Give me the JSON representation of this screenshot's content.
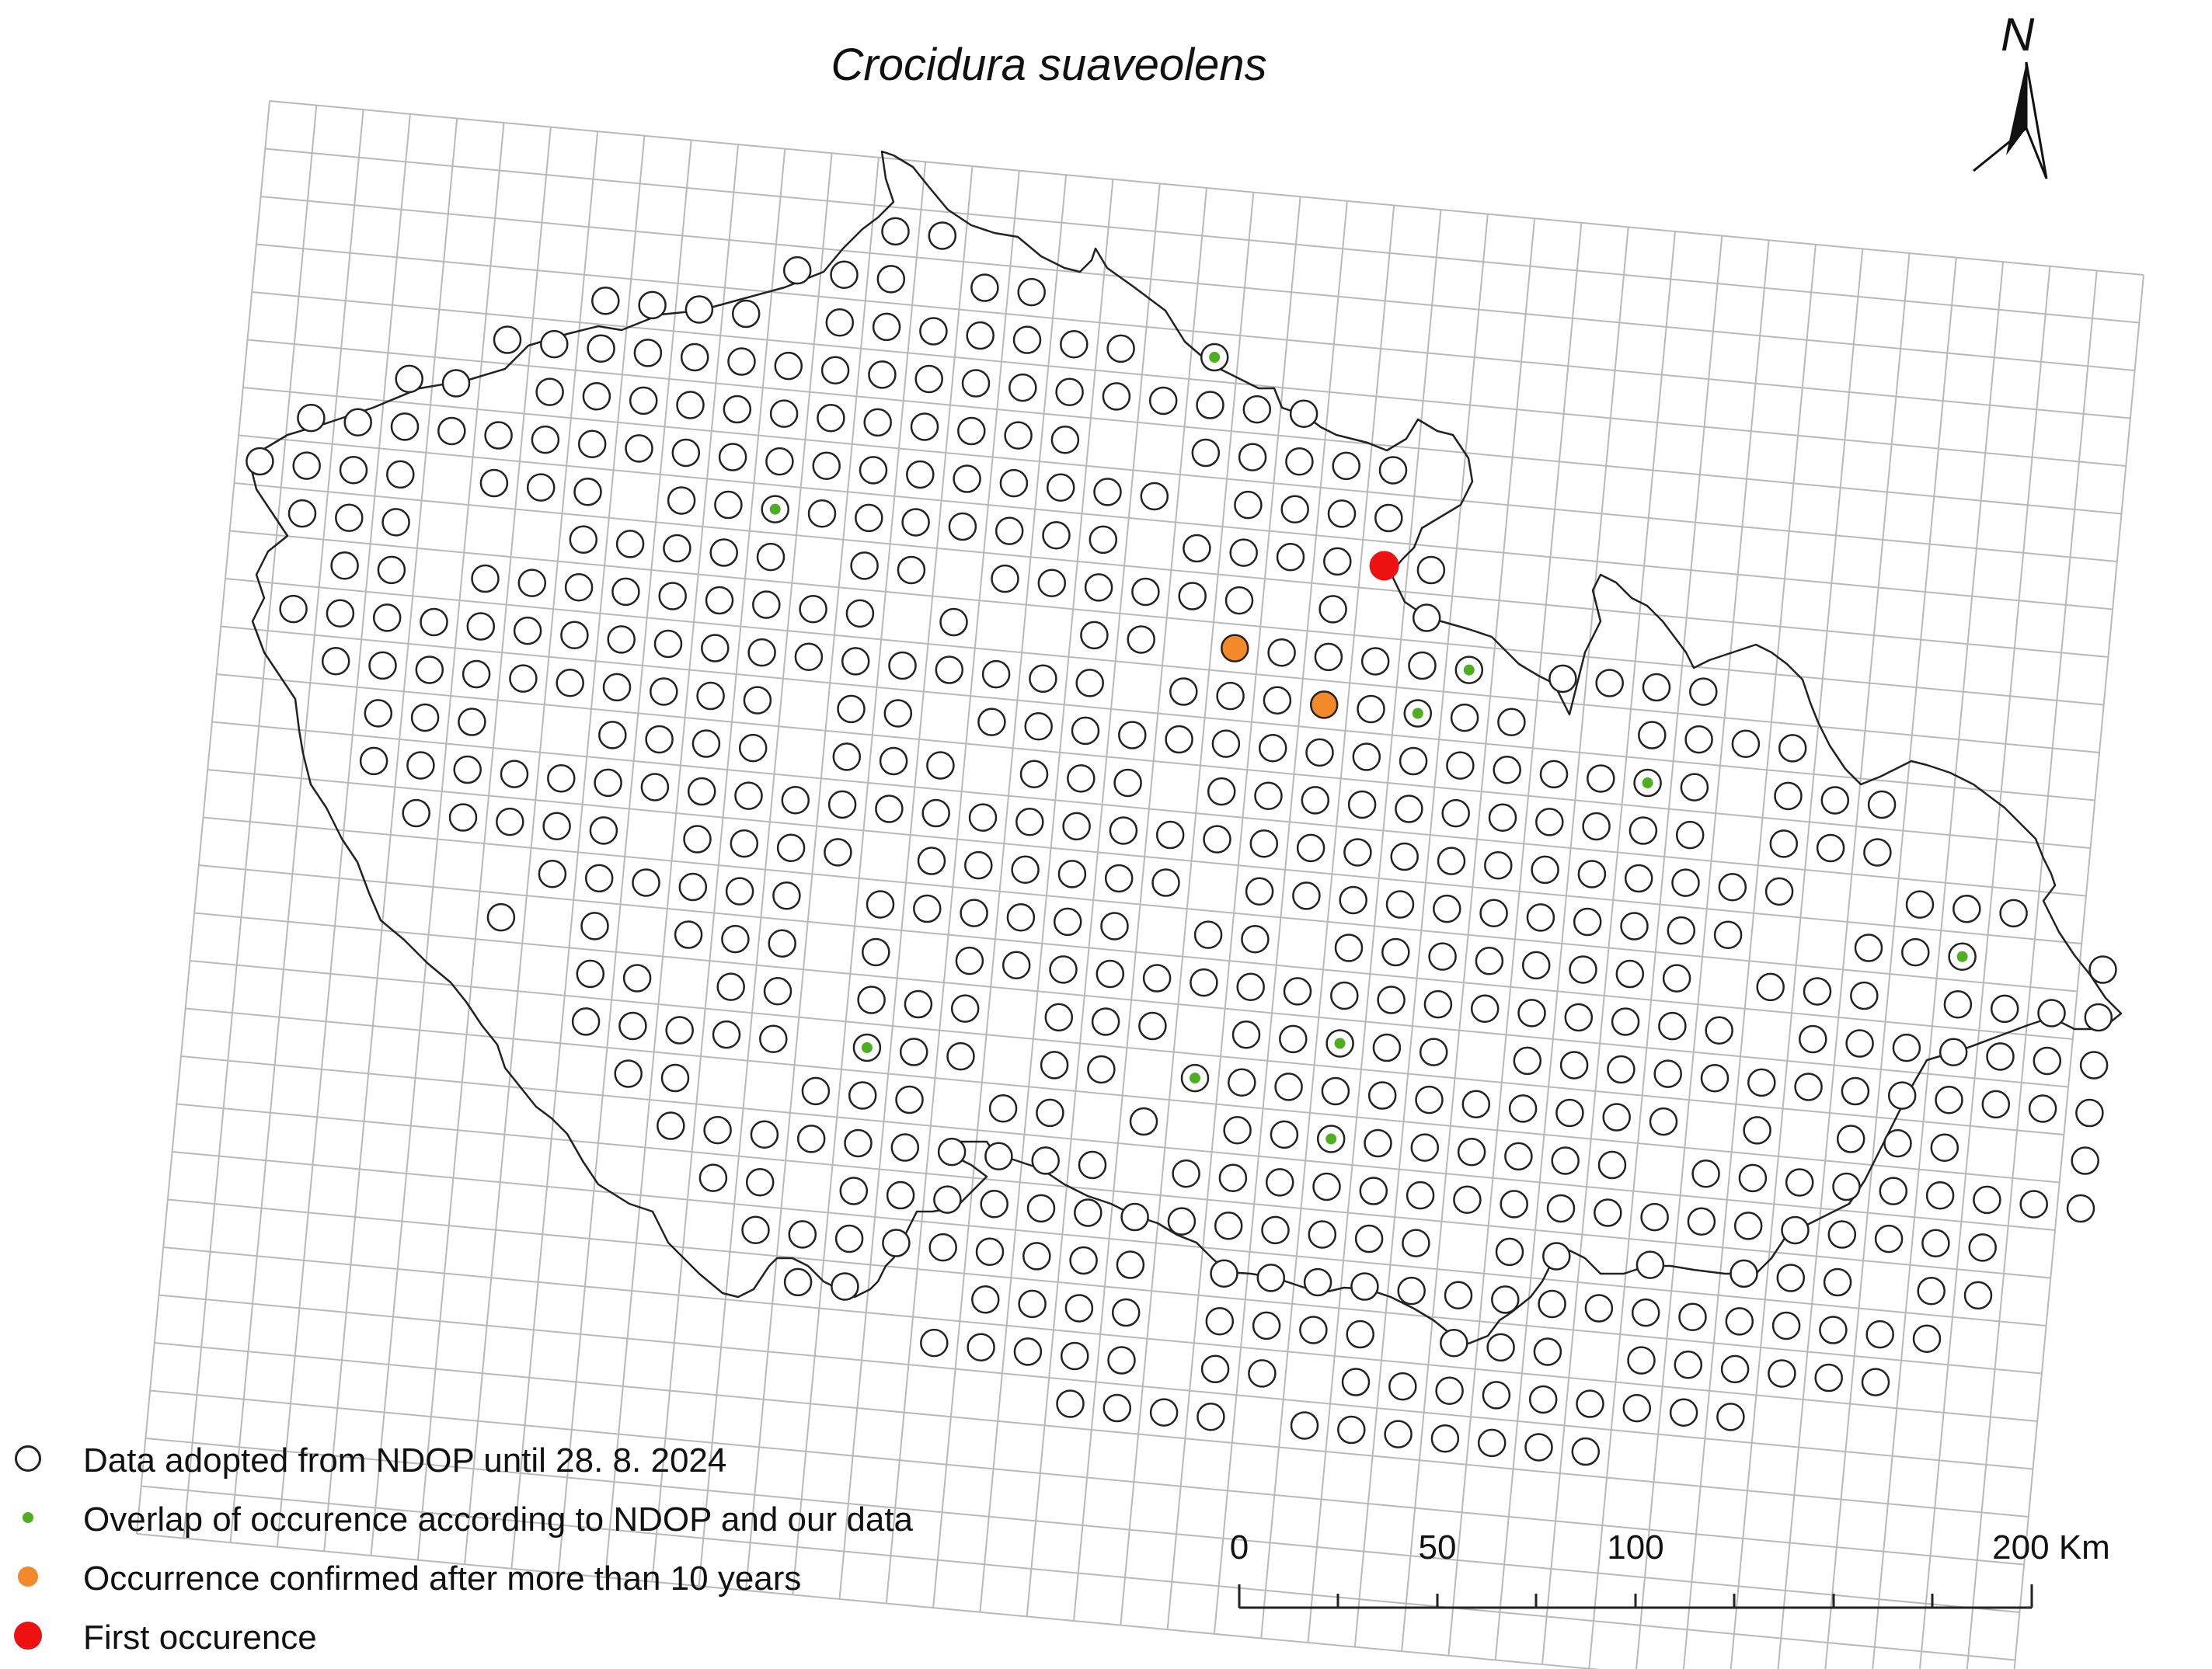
{
  "map": {
    "title": "Crocidura suaveolens",
    "north_label": "N",
    "colors": {
      "grid": "#b9b9b9",
      "border": "#222222",
      "circle_stroke": "#222222",
      "overlap": "#4fad22",
      "confirmed": "#f2892b",
      "first": "#ee1111"
    }
  },
  "legend": [
    {
      "label": "Data adopted from NDOP until 28. 8. 2024",
      "symbol": "open-circle"
    },
    {
      "label": "Overlap of occurence according to NDOP and our data",
      "symbol": "green-dot"
    },
    {
      "label": "Occurrence confirmed after more than 10 years",
      "symbol": "orange-dot"
    },
    {
      "label": "First occurence",
      "symbol": "red-dot"
    }
  ],
  "scale_bar": {
    "labels": [
      "0",
      "50",
      "100",
      "200 Km"
    ]
  }
}
